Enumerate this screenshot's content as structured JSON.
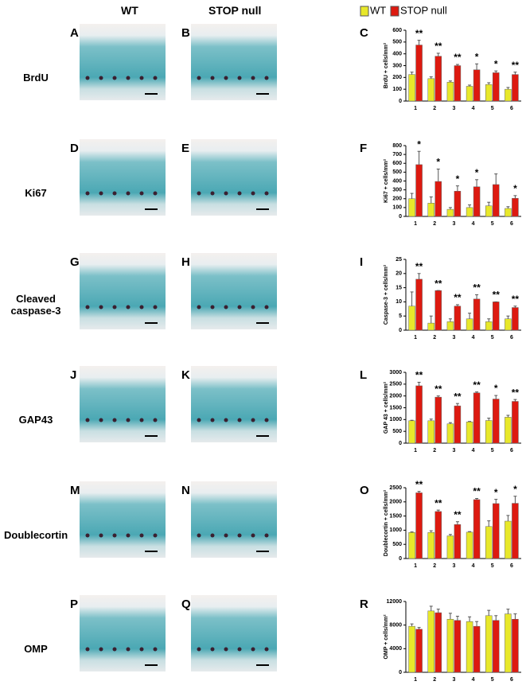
{
  "headers": [
    "WT",
    "STOP null"
  ],
  "rows": [
    {
      "label": "BrdU",
      "panels": [
        "A",
        "B",
        "C"
      ]
    },
    {
      "label": "Ki67",
      "panels": [
        "D",
        "E",
        "F"
      ]
    },
    {
      "label": "Cleaved caspase-3",
      "panels": [
        "G",
        "H",
        "I"
      ]
    },
    {
      "label": "GAP43",
      "panels": [
        "J",
        "K",
        "L"
      ]
    },
    {
      "label": "Doublecortin",
      "panels": [
        "M",
        "N",
        "O"
      ]
    },
    {
      "label": "OMP",
      "panels": [
        "P",
        "Q",
        "R"
      ]
    }
  ],
  "chart_data": [
    {
      "type": "bar",
      "ylabel": "BrdU + cells/mm²",
      "categories": [
        "1",
        "2",
        "3",
        "4",
        "5",
        "6"
      ],
      "ylim": [
        0,
        600
      ],
      "yticks": [
        0,
        100,
        200,
        300,
        400,
        500,
        600
      ],
      "series": [
        {
          "name": "WT",
          "color": "#e8e82a",
          "values": [
            225,
            190,
            160,
            125,
            140,
            100
          ],
          "errors": [
            20,
            15,
            10,
            10,
            15,
            15
          ]
        },
        {
          "name": "STOP null",
          "color": "#dd1a10",
          "values": [
            475,
            380,
            300,
            265,
            240,
            225
          ],
          "errors": [
            40,
            25,
            10,
            50,
            15,
            20
          ]
        }
      ],
      "significance": [
        "**",
        "**",
        "**",
        "*",
        "*",
        "**"
      ]
    },
    {
      "type": "bar",
      "ylabel": "Ki67 + cells/mm²",
      "categories": [
        "1",
        "2",
        "3",
        "4",
        "5",
        "6"
      ],
      "ylim": [
        0,
        800
      ],
      "yticks": [
        0,
        100,
        200,
        300,
        400,
        500,
        600,
        700,
        800
      ],
      "series": [
        {
          "color": "#e8e82a",
          "values": [
            200,
            150,
            80,
            100,
            120,
            90
          ],
          "errors": [
            60,
            70,
            20,
            30,
            40,
            20
          ]
        },
        {
          "color": "#dd1a10",
          "values": [
            585,
            395,
            285,
            335,
            360,
            205
          ],
          "errors": [
            150,
            140,
            60,
            80,
            120,
            30
          ]
        }
      ],
      "significance": [
        "*",
        "*",
        "*",
        "*",
        null,
        "*"
      ]
    },
    {
      "type": "bar",
      "ylabel": "Caspase-3 + cells/mm²",
      "categories": [
        "1",
        "2",
        "3",
        "4",
        "5",
        "6"
      ],
      "ylim": [
        0,
        25
      ],
      "yticks": [
        0,
        5,
        10,
        15,
        20,
        25
      ],
      "series": [
        {
          "color": "#e8e82a",
          "values": [
            8.5,
            2.5,
            3,
            4,
            3,
            4
          ],
          "errors": [
            5,
            2.5,
            1,
            2,
            1,
            1
          ]
        },
        {
          "color": "#dd1a10",
          "values": [
            18,
            14,
            8.5,
            11,
            10,
            8
          ],
          "errors": [
            2,
            0,
            0.5,
            1.5,
            0,
            0.5
          ]
        }
      ],
      "significance": [
        "**",
        "**",
        "**",
        "**",
        "**",
        "**"
      ]
    },
    {
      "type": "bar",
      "ylabel": "GAP 43 + cells/mm²",
      "categories": [
        "1",
        "2",
        "3",
        "4",
        "5",
        "6"
      ],
      "ylim": [
        0,
        3000
      ],
      "yticks": [
        0,
        500,
        1000,
        1500,
        2000,
        2500,
        3000
      ],
      "series": [
        {
          "color": "#e8e82a",
          "values": [
            950,
            950,
            820,
            900,
            960,
            1100
          ],
          "errors": [
            20,
            70,
            50,
            20,
            100,
            80
          ]
        },
        {
          "color": "#dd1a10",
          "values": [
            2430,
            1950,
            1580,
            2130,
            1870,
            1770
          ],
          "errors": [
            150,
            50,
            100,
            40,
            150,
            80
          ]
        }
      ],
      "significance": [
        "**",
        "**",
        "**",
        "**",
        "*",
        "**"
      ]
    },
    {
      "type": "bar",
      "ylabel": "Doublecortin + cells/mm²",
      "categories": [
        "1",
        "2",
        "3",
        "4",
        "5",
        "6"
      ],
      "ylim": [
        0,
        2500
      ],
      "yticks": [
        0,
        500,
        1000,
        1500,
        2000,
        2500
      ],
      "series": [
        {
          "color": "#e8e82a",
          "values": [
            920,
            920,
            800,
            930,
            1130,
            1320
          ],
          "errors": [
            20,
            60,
            50,
            20,
            200,
            200
          ]
        },
        {
          "color": "#dd1a10",
          "values": [
            2320,
            1660,
            1200,
            2080,
            1940,
            1950
          ],
          "errors": [
            50,
            50,
            100,
            40,
            150,
            250
          ]
        }
      ],
      "significance": [
        "**",
        "**",
        "**",
        "**",
        "*",
        "*"
      ]
    },
    {
      "type": "bar",
      "ylabel": "OMP + cells/mm²",
      "categories": [
        "1",
        "2",
        "3",
        "4",
        "5",
        "6"
      ],
      "ylim": [
        0,
        12000
      ],
      "yticks": [
        0,
        4000,
        8000,
        12000
      ],
      "series": [
        {
          "color": "#e8e82a",
          "values": [
            7800,
            10400,
            9000,
            8600,
            9600,
            9900
          ],
          "errors": [
            400,
            800,
            1000,
            800,
            900,
            800
          ]
        },
        {
          "color": "#dd1a10",
          "values": [
            7300,
            10100,
            8800,
            7800,
            8800,
            9000
          ],
          "errors": [
            300,
            600,
            700,
            800,
            800,
            900
          ]
        }
      ]
    }
  ]
}
